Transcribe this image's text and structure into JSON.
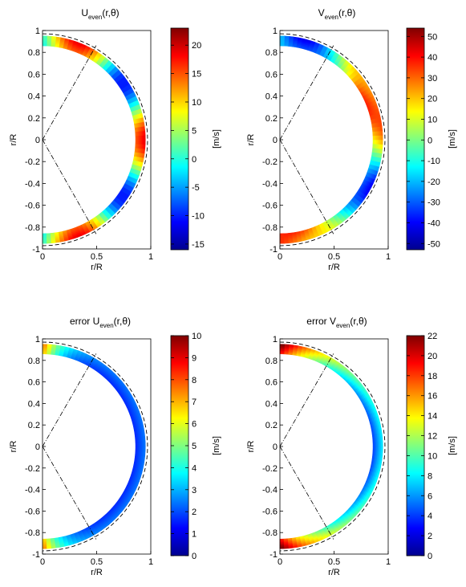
{
  "chart_data": [
    {
      "type": "heatmap",
      "title_main": "U",
      "title_sub": "even",
      "title_tail": "(r,θ)",
      "xlabel": "r/R",
      "ylabel": "r/R",
      "xlim": [
        0,
        1
      ],
      "ylim": [
        -1,
        1
      ],
      "xticks": [
        "0",
        "0.5",
        "1"
      ],
      "yticks": [
        "-1",
        "-0.8",
        "-0.6",
        "-0.4",
        "-0.2",
        "0",
        "0.2",
        "0.4",
        "0.6",
        "0.8",
        "1"
      ],
      "colorbar": {
        "label": "[m/s]",
        "range": [
          -16,
          23
        ],
        "ticks": [
          "20",
          "15",
          "10",
          "5",
          "0",
          "-5",
          "-10",
          "-15"
        ],
        "tick_values": [
          20,
          15,
          10,
          5,
          0,
          -5,
          -10,
          -15
        ]
      },
      "domain": {
        "r_inner": 0.86,
        "r_outer": 0.95,
        "tangent_radius": 0.97,
        "tangent_lat_deg": 60
      },
      "pattern": "alternating"
    },
    {
      "type": "heatmap",
      "title_main": "V",
      "title_sub": "even",
      "title_tail": "(r,θ)",
      "xlabel": "r/R",
      "ylabel": "r/R",
      "xlim": [
        0,
        1
      ],
      "ylim": [
        -1,
        1
      ],
      "xticks": [
        "0",
        "0.5",
        "1"
      ],
      "yticks": [
        "-1",
        "-0.8",
        "-0.6",
        "-0.4",
        "-0.2",
        "0",
        "0.2",
        "0.4",
        "0.6",
        "0.8",
        "1"
      ],
      "colorbar": {
        "label": "[m/s]",
        "range": [
          -53,
          54
        ],
        "ticks": [
          "50",
          "40",
          "30",
          "20",
          "10",
          "0",
          "-10",
          "-20",
          "-30",
          "-40",
          "-50"
        ],
        "tick_values": [
          50,
          40,
          30,
          20,
          10,
          0,
          -10,
          -20,
          -30,
          -40,
          -50
        ]
      },
      "domain": {
        "r_inner": 0.86,
        "r_outer": 0.95,
        "tangent_radius": 0.97,
        "tangent_lat_deg": 60
      },
      "pattern": "antisymmetric"
    },
    {
      "type": "heatmap",
      "title_main": "error U",
      "title_sub": "even",
      "title_tail": "(r,θ)",
      "xlabel": "r/R",
      "ylabel": "r/R",
      "xlim": [
        0,
        1
      ],
      "ylim": [
        -1,
        1
      ],
      "xticks": [
        "0",
        "0.5",
        "1"
      ],
      "yticks": [
        "-1",
        "-0.8",
        "-0.6",
        "-0.4",
        "-0.2",
        "0",
        "0.2",
        "0.4",
        "0.6",
        "0.8",
        "1"
      ],
      "colorbar": {
        "label": "[m/s]",
        "range": [
          0,
          10
        ],
        "ticks": [
          "10",
          "9",
          "8",
          "7",
          "6",
          "5",
          "4",
          "3",
          "2",
          "1",
          "0"
        ],
        "tick_values": [
          10,
          9,
          8,
          7,
          6,
          5,
          4,
          3,
          2,
          1,
          0
        ]
      },
      "domain": {
        "r_inner": 0.86,
        "r_outer": 0.95,
        "tangent_radius": 0.97,
        "tangent_lat_deg": 60
      },
      "pattern": "error-low"
    },
    {
      "type": "heatmap",
      "title_main": "error V",
      "title_sub": "even",
      "title_tail": "(r,θ)",
      "xlabel": "r/R",
      "ylabel": "r/R",
      "xlim": [
        0,
        1
      ],
      "ylim": [
        -1,
        1
      ],
      "xticks": [
        "0",
        "0.5",
        "1"
      ],
      "yticks": [
        "-1",
        "-0.8",
        "-0.6",
        "-0.4",
        "-0.2",
        "0",
        "0.2",
        "0.4",
        "0.6",
        "0.8",
        "1"
      ],
      "colorbar": {
        "label": "[m/s]",
        "range": [
          0,
          22
        ],
        "ticks": [
          "22",
          "20",
          "18",
          "16",
          "14",
          "12",
          "10",
          "8",
          "6",
          "4",
          "2",
          "0"
        ],
        "tick_values": [
          22,
          20,
          18,
          16,
          14,
          12,
          10,
          8,
          6,
          4,
          2,
          0
        ]
      },
      "domain": {
        "r_inner": 0.86,
        "r_outer": 0.95,
        "tangent_radius": 0.97,
        "tangent_lat_deg": 60
      },
      "pattern": "error-high"
    }
  ]
}
